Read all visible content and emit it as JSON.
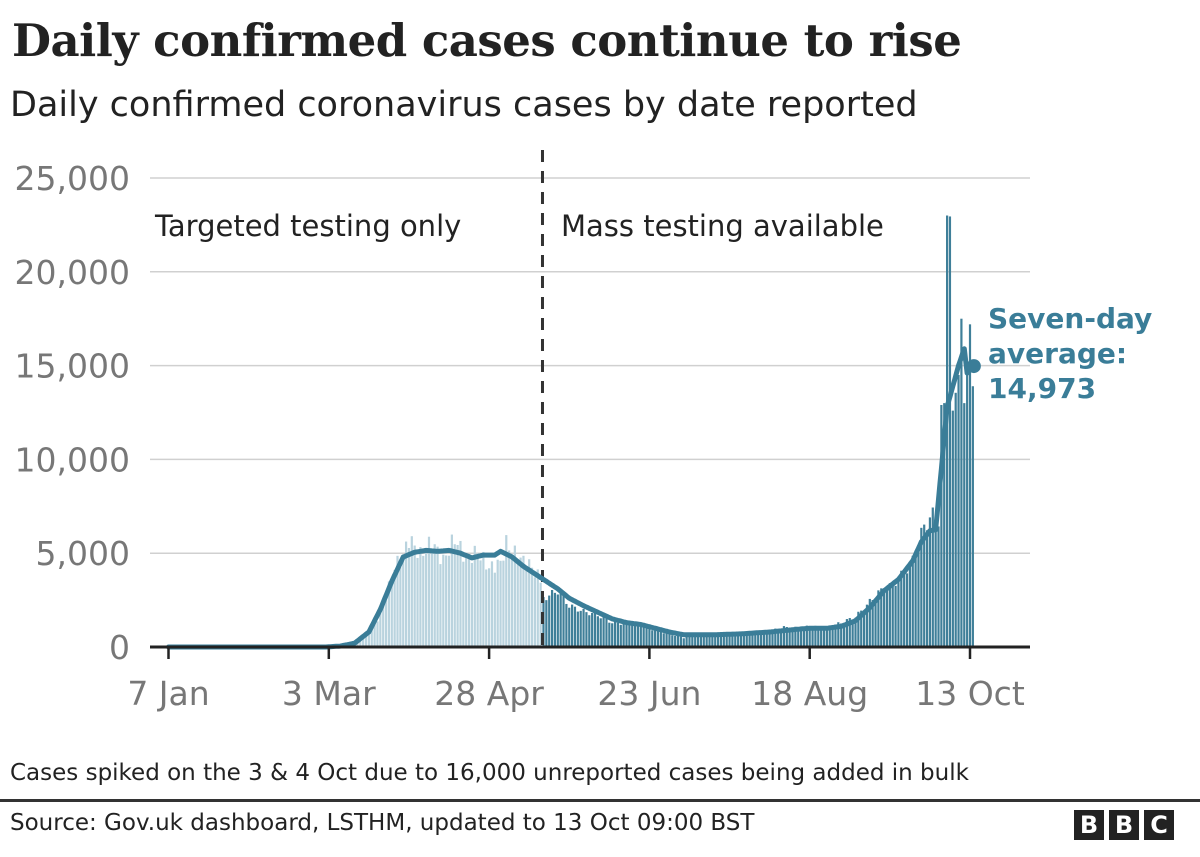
{
  "title": "Daily confirmed cases continue to rise",
  "subtitle": "Daily confirmed coronavirus cases by date reported",
  "footnote": "Cases spiked on the 3 & 4 Oct due to 16,000 unreported cases being added in bulk",
  "source": "Source: Gov.uk dashboard, LSTHM, updated to 13 Oct 09:00 BST",
  "logo_letters": [
    "B",
    "B",
    "C"
  ],
  "colors": {
    "bar_before": "#b9d3de",
    "bar_after": "#3f7f99",
    "line": "#3a7d98",
    "annotation": "#3a7d98",
    "grid": "#d0d0d0",
    "axis": "#222222",
    "tick_text": "#777777"
  },
  "chart_data": {
    "type": "bar",
    "x_start": "2020-01-07",
    "x_end": "2020-10-13",
    "ylim": [
      0,
      25000
    ],
    "y_ticks": [
      0,
      5000,
      10000,
      15000,
      20000,
      25000
    ],
    "y_tick_labels": [
      "0",
      "5,000",
      "10,000",
      "15,000",
      "20,000",
      "25,000"
    ],
    "x_ticks": [
      {
        "day": 0,
        "label": "7 Jan"
      },
      {
        "day": 56,
        "label": "3 Mar"
      },
      {
        "day": 112,
        "label": "28 Apr"
      },
      {
        "day": 168,
        "label": "23 Jun"
      },
      {
        "day": 224,
        "label": "18 Aug"
      },
      {
        "day": 280,
        "label": "13 Oct"
      }
    ],
    "divider_day": 131,
    "region_labels": [
      "Targeted testing only",
      "Mass testing available"
    ],
    "annotation": {
      "line1": "Seven-day",
      "line2": "average:",
      "line3": "14,973",
      "value": 14973
    },
    "daily_anchors": [
      [
        0,
        0
      ],
      [
        50,
        0
      ],
      [
        60,
        30
      ],
      [
        65,
        200
      ],
      [
        70,
        700
      ],
      [
        73,
        1500
      ],
      [
        76,
        2700
      ],
      [
        79,
        4300
      ],
      [
        82,
        4800
      ],
      [
        84,
        5800
      ],
      [
        88,
        4900
      ],
      [
        92,
        5600
      ],
      [
        96,
        4600
      ],
      [
        100,
        5800
      ],
      [
        104,
        4700
      ],
      [
        108,
        5100
      ],
      [
        112,
        4200
      ],
      [
        116,
        4500
      ],
      [
        118,
        5500
      ],
      [
        122,
        4800
      ],
      [
        126,
        4400
      ],
      [
        130,
        3600
      ],
      [
        131,
        2600
      ],
      [
        136,
        3000
      ],
      [
        140,
        2200
      ],
      [
        145,
        1900
      ],
      [
        150,
        1700
      ],
      [
        155,
        1300
      ],
      [
        160,
        1250
      ],
      [
        165,
        1200
      ],
      [
        170,
        900
      ],
      [
        175,
        700
      ],
      [
        180,
        500
      ],
      [
        185,
        700
      ],
      [
        190,
        600
      ],
      [
        200,
        700
      ],
      [
        210,
        850
      ],
      [
        215,
        1050
      ],
      [
        220,
        1000
      ],
      [
        224,
        1100
      ],
      [
        230,
        1000
      ],
      [
        235,
        1300
      ],
      [
        240,
        1600
      ],
      [
        245,
        2400
      ],
      [
        248,
        2900
      ],
      [
        252,
        3200
      ],
      [
        256,
        3800
      ],
      [
        260,
        4600
      ],
      [
        263,
        6000
      ],
      [
        266,
        7000
      ],
      [
        268,
        6900
      ],
      [
        269,
        6900
      ],
      [
        270,
        12900
      ],
      [
        271,
        13000
      ],
      [
        272,
        23000
      ],
      [
        273,
        22950
      ],
      [
        274,
        12600
      ],
      [
        276,
        14500
      ],
      [
        277,
        17500
      ],
      [
        278,
        13000
      ],
      [
        279,
        15200
      ],
      [
        280,
        17200
      ],
      [
        281,
        13900
      ]
    ],
    "avg_anchors": [
      [
        0,
        0
      ],
      [
        55,
        0
      ],
      [
        60,
        50
      ],
      [
        65,
        200
      ],
      [
        70,
        800
      ],
      [
        74,
        2000
      ],
      [
        78,
        3500
      ],
      [
        82,
        4800
      ],
      [
        86,
        5050
      ],
      [
        90,
        5150
      ],
      [
        94,
        5100
      ],
      [
        98,
        5150
      ],
      [
        102,
        5000
      ],
      [
        106,
        4750
      ],
      [
        110,
        4900
      ],
      [
        114,
        4900
      ],
      [
        116,
        5100
      ],
      [
        120,
        4800
      ],
      [
        124,
        4300
      ],
      [
        128,
        3900
      ],
      [
        132,
        3500
      ],
      [
        136,
        3100
      ],
      [
        140,
        2600
      ],
      [
        145,
        2200
      ],
      [
        150,
        1850
      ],
      [
        155,
        1500
      ],
      [
        160,
        1300
      ],
      [
        165,
        1200
      ],
      [
        170,
        1000
      ],
      [
        175,
        800
      ],
      [
        180,
        650
      ],
      [
        185,
        650
      ],
      [
        190,
        650
      ],
      [
        200,
        700
      ],
      [
        210,
        800
      ],
      [
        220,
        950
      ],
      [
        224,
        1000
      ],
      [
        230,
        1000
      ],
      [
        235,
        1100
      ],
      [
        240,
        1400
      ],
      [
        245,
        2100
      ],
      [
        250,
        3000
      ],
      [
        255,
        3600
      ],
      [
        260,
        4600
      ],
      [
        263,
        5600
      ],
      [
        266,
        6200
      ],
      [
        268,
        6250
      ],
      [
        270,
        9500
      ],
      [
        272,
        12800
      ],
      [
        274,
        13900
      ],
      [
        276,
        15000
      ],
      [
        278,
        15900
      ],
      [
        279,
        14600
      ],
      [
        280,
        15100
      ],
      [
        281,
        14973
      ]
    ]
  }
}
